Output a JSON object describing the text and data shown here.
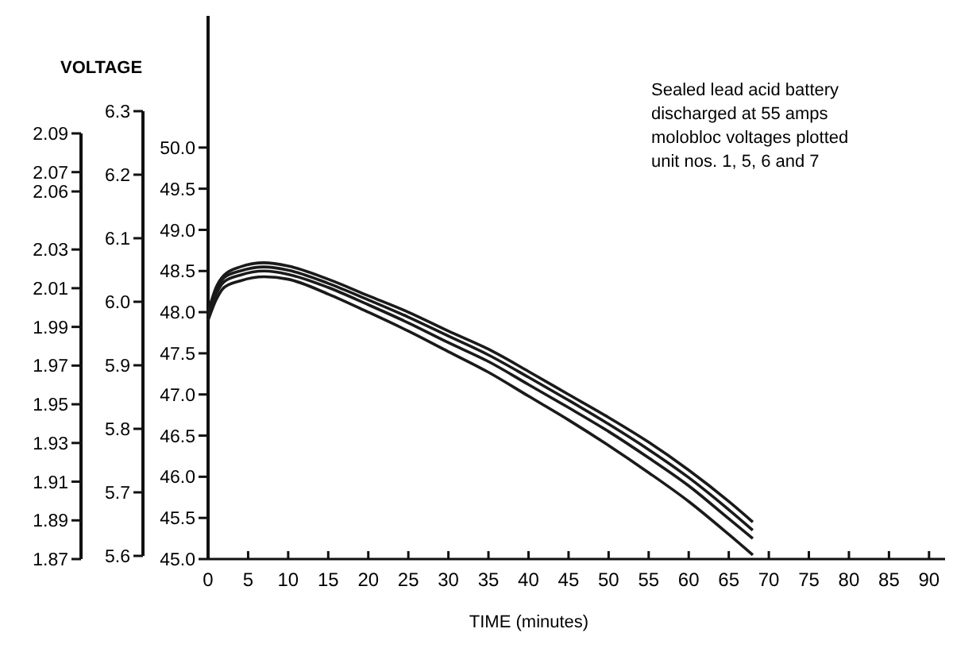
{
  "chart_data": {
    "type": "line",
    "y3label": "VOLTAGE",
    "xlabel": "TIME (minutes)",
    "annotations": [
      "Sealed lead acid battery\ndischarged at 55 amps\nmolobloc voltages plotted\nunit nos. 1, 5, 6 and 7"
    ],
    "xlim": [
      0,
      92
    ],
    "xticks": [
      0,
      5,
      10,
      15,
      20,
      25,
      30,
      35,
      40,
      45,
      50,
      55,
      60,
      65,
      70,
      75,
      80,
      85,
      90
    ],
    "ylim": [
      45,
      51.6
    ],
    "yticks": [
      {
        "value": 45,
        "label": "45.0"
      },
      {
        "value": 45.5,
        "label": "45.5"
      },
      {
        "value": 46,
        "label": "46.0"
      },
      {
        "value": 46.5,
        "label": "46.5"
      },
      {
        "value": 47,
        "label": "47.0"
      },
      {
        "value": 47.5,
        "label": "47.5"
      },
      {
        "value": 48,
        "label": "48.0"
      },
      {
        "value": 48.5,
        "label": "48.5"
      },
      {
        "value": 49,
        "label": "49.0"
      },
      {
        "value": 49.5,
        "label": "49.5"
      },
      {
        "value": 50,
        "label": "50.0"
      }
    ],
    "y2lim": [
      5.6,
      6.3
    ],
    "y2ticks": [
      5.6,
      5.7,
      5.8,
      5.9,
      {
        "value": 6.0,
        "label": "6.0"
      },
      6.1,
      6.2,
      6.3
    ],
    "y3lim": [
      1.87,
      2.09
    ],
    "y3ticks": [
      1.87,
      1.89,
      1.91,
      1.93,
      1.95,
      1.97,
      1.99,
      2.01,
      2.03,
      2.06,
      2.07,
      2.09
    ],
    "grid": false,
    "marker": "none",
    "line_style": "solid",
    "x": [
      0,
      1,
      2,
      4,
      7,
      10,
      15,
      20,
      25,
      30,
      35,
      40,
      45,
      50,
      55,
      60,
      65,
      68
    ],
    "series": [
      {
        "color": "#1a1a1a",
        "values": [
          48.0,
          48.3,
          48.45,
          48.55,
          48.6,
          48.56,
          48.4,
          48.2,
          48.0,
          47.77,
          47.55,
          47.28,
          47.0,
          46.72,
          46.42,
          46.08,
          45.7,
          45.45
        ]
      },
      {
        "color": "#1a1a1a",
        "values": [
          48.0,
          48.27,
          48.42,
          48.5,
          48.55,
          48.51,
          48.35,
          48.15,
          47.94,
          47.71,
          47.48,
          47.21,
          46.93,
          46.64,
          46.33,
          45.99,
          45.6,
          45.35
        ]
      },
      {
        "color": "#1a1a1a",
        "values": [
          47.95,
          48.22,
          48.37,
          48.45,
          48.5,
          48.46,
          48.3,
          48.09,
          47.87,
          47.63,
          47.4,
          47.12,
          46.84,
          46.55,
          46.23,
          45.89,
          45.49,
          45.25
        ]
      },
      {
        "color": "#1a1a1a",
        "values": [
          47.9,
          48.15,
          48.3,
          48.38,
          48.43,
          48.4,
          48.22,
          48.0,
          47.77,
          47.52,
          47.27,
          46.98,
          46.69,
          46.38,
          46.05,
          45.7,
          45.3,
          45.05
        ]
      }
    ]
  }
}
